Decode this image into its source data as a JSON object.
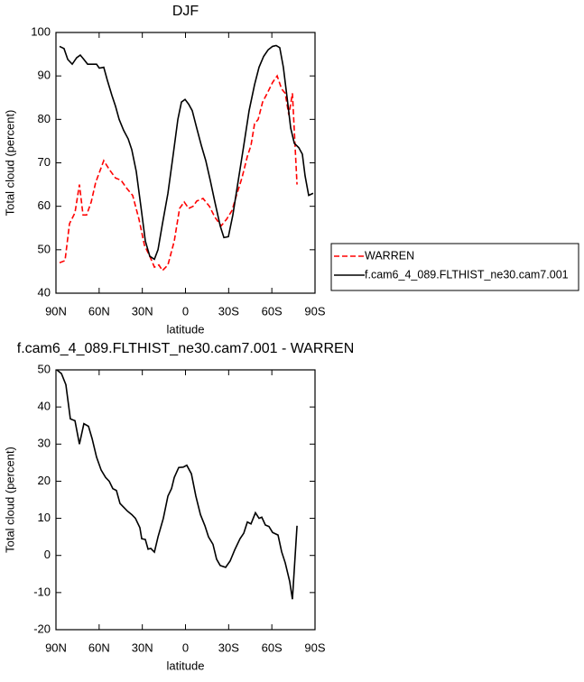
{
  "chart_data": [
    {
      "type": "line",
      "title": "DJF",
      "xlabel": "latitude",
      "ylabel": "Total cloud (percent)",
      "xlim": [
        90,
        -90
      ],
      "xticks": [
        {
          "value": 90,
          "label": "90N"
        },
        {
          "value": 60,
          "label": "60N"
        },
        {
          "value": 30,
          "label": "30N"
        },
        0,
        {
          "value": -30,
          "label": "30S"
        },
        {
          "value": -60,
          "label": "60S"
        },
        {
          "value": -90,
          "label": "90S"
        }
      ],
      "ylim": [
        40,
        100
      ],
      "yticks": [
        40,
        50,
        60,
        70,
        80,
        90,
        100
      ],
      "legend": "right",
      "series": [
        {
          "name": "WARREN",
          "color": "#ff0000",
          "line_style": "dashed",
          "x": [
            87.5,
            83.7,
            80.6,
            76.8,
            73.7,
            71.2,
            68.7,
            65.5,
            62.4,
            56.8,
            53,
            48.6,
            44.8,
            40.5,
            36.7,
            32.3,
            28.5,
            24.8,
            21.6,
            18.5,
            16,
            12.2,
            7.8,
            4.1,
            0.9,
            -2.2,
            -5.3,
            -7.8,
            -12.2,
            -16.6,
            -20.4,
            -24.8,
            -28.5,
            -32.3,
            -35.4,
            -39.2,
            -43,
            -45.5,
            -48,
            -50.5,
            -53.6,
            -56.8,
            -60.5,
            -63.7,
            -66.8,
            -69.3,
            -71.8,
            -74.3,
            -77.5
          ],
          "values": [
            47,
            47.5,
            56,
            58.5,
            65,
            58,
            58,
            61,
            65.5,
            70.5,
            68.5,
            66.5,
            66,
            64,
            62.5,
            57,
            51,
            48.5,
            46,
            46.5,
            45.2,
            46.5,
            52,
            59.5,
            61,
            59.5,
            60,
            61.2,
            61.8,
            60,
            57.5,
            55.5,
            57,
            59,
            62.5,
            66.5,
            71.5,
            74,
            79,
            80,
            84,
            86,
            88.5,
            90,
            87,
            86,
            81,
            86,
            65
          ]
        },
        {
          "name": "f.cam6_4_089.FLTHIST_ne30.cam7.001",
          "color": "#000000",
          "line_style": "solid",
          "x": [
            87.5,
            84.4,
            81.8,
            78.7,
            75.6,
            73.1,
            70.6,
            68,
            64.3,
            61.8,
            59.9,
            56.8,
            54.3,
            51.1,
            48.6,
            46.1,
            43,
            39.8,
            37.3,
            34.2,
            31,
            27.9,
            24.8,
            21.6,
            19.1,
            16,
            12.2,
            8.5,
            5.3,
            2.8,
            0.3,
            -2.2,
            -4.7,
            -7.8,
            -11,
            -14.1,
            -17.2,
            -20.4,
            -24.1,
            -26.7,
            -29.8,
            -32.9,
            -36.7,
            -40.5,
            -44.2,
            -48,
            -51.1,
            -54.3,
            -57.4,
            -60.5,
            -63,
            -65.5,
            -68,
            -70.6,
            -73.1,
            -75.6,
            -78.7,
            -81.2,
            -83.1,
            -85.6,
            -88.7
          ],
          "values": [
            96.8,
            96.3,
            93.8,
            92.7,
            94.2,
            94.8,
            93.8,
            92.7,
            92.7,
            92.7,
            91.8,
            92,
            89,
            85.5,
            83,
            80,
            77.5,
            75.5,
            73,
            68,
            60,
            52,
            48.5,
            47.8,
            50,
            56,
            63,
            72,
            80,
            84,
            84.6,
            83.5,
            82,
            78,
            74,
            70.5,
            66,
            61,
            55.5,
            52.8,
            53,
            58,
            66,
            74,
            82,
            88,
            92,
            94.5,
            96,
            96.8,
            97,
            96.5,
            92,
            85,
            78,
            74.5,
            73.5,
            72,
            67,
            62.5,
            63
          ]
        }
      ]
    },
    {
      "type": "line",
      "title": "f.cam6_4_089.FLTHIST_ne30.cam7.001 - WARREN",
      "xlabel": "latitude",
      "ylabel": "Total cloud (percent)",
      "xlim": [
        90,
        -90
      ],
      "xticks": [
        {
          "value": 90,
          "label": "90N"
        },
        {
          "value": 60,
          "label": "60N"
        },
        {
          "value": 30,
          "label": "30N"
        },
        0,
        {
          "value": -30,
          "label": "30S"
        },
        {
          "value": -60,
          "label": "60S"
        },
        {
          "value": -90,
          "label": "90S"
        }
      ],
      "ylim": [
        -20,
        50
      ],
      "yticks": [
        -20,
        -10,
        0,
        10,
        20,
        30,
        40,
        50
      ],
      "series": [
        {
          "color": "#000000",
          "line_style": "solid",
          "x": [
            89.4,
            86.2,
            83.1,
            80,
            76.8,
            73.7,
            70.6,
            67.4,
            64.9,
            61.8,
            58.6,
            55.5,
            53,
            50.5,
            48,
            45.5,
            43,
            40.5,
            37.3,
            34.8,
            31.7,
            30.4,
            27.9,
            26,
            24.1,
            21.6,
            19.1,
            15.4,
            12.2,
            9.7,
            7.8,
            4.7,
            1.6,
            -0.9,
            -4.1,
            -7.2,
            -10.4,
            -13.5,
            -16,
            -19.1,
            -21.6,
            -24.1,
            -27.9,
            -31,
            -34.2,
            -37.9,
            -40.5,
            -43,
            -45.5,
            -48.6,
            -51.1,
            -53,
            -55.5,
            -58,
            -60.5,
            -64.3,
            -66.8,
            -69.3,
            -72.4,
            -74.3,
            -77.5
          ],
          "values": [
            50,
            49,
            46,
            36.8,
            36.3,
            30,
            35.5,
            34.8,
            31.5,
            26.5,
            23,
            21,
            20,
            18,
            17.5,
            14,
            13,
            12,
            11,
            10,
            7.5,
            4.5,
            4.3,
            1.7,
            1.9,
            0.9,
            5,
            10,
            16,
            18,
            21,
            23.7,
            23.8,
            24.3,
            22,
            16,
            11,
            8,
            5,
            3,
            -1,
            -2.7,
            -3.2,
            -1.5,
            1.5,
            4.5,
            6,
            9,
            8.5,
            11.5,
            10,
            10.3,
            8.2,
            7.8,
            6.2,
            5.5,
            1,
            -2,
            -7,
            -11.8,
            8
          ]
        }
      ]
    }
  ]
}
